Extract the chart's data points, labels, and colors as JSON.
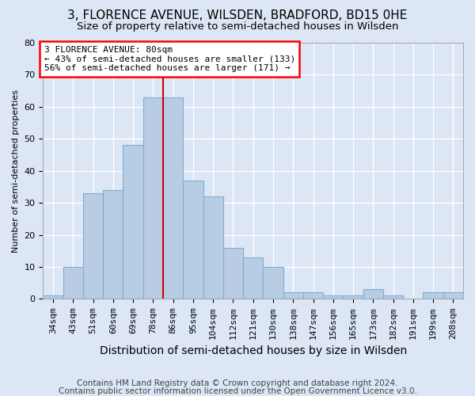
{
  "title": "3, FLORENCE AVENUE, WILSDEN, BRADFORD, BD15 0HE",
  "subtitle": "Size of property relative to semi-detached houses in Wilsden",
  "xlabel": "Distribution of semi-detached houses by size in Wilsden",
  "ylabel": "Number of semi-detached properties",
  "categories": [
    "34sqm",
    "43sqm",
    "51sqm",
    "60sqm",
    "69sqm",
    "78sqm",
    "86sqm",
    "95sqm",
    "104sqm",
    "112sqm",
    "121sqm",
    "130sqm",
    "138sqm",
    "147sqm",
    "156sqm",
    "165sqm",
    "173sqm",
    "182sqm",
    "191sqm",
    "199sqm",
    "208sqm"
  ],
  "values": [
    1,
    10,
    33,
    34,
    48,
    63,
    63,
    37,
    32,
    16,
    13,
    10,
    2,
    2,
    1,
    1,
    3,
    1,
    0,
    2,
    2
  ],
  "bar_color": "#b8cce4",
  "bar_edge_color": "#7bafd4",
  "property_line_x": 5.5,
  "annotation_text": "3 FLORENCE AVENUE: 80sqm\n← 43% of semi-detached houses are smaller (133)\n56% of semi-detached houses are larger (171) →",
  "annotation_box_color": "white",
  "annotation_box_edge": "red",
  "vline_color": "#cc0000",
  "ylim": [
    0,
    80
  ],
  "yticks": [
    0,
    10,
    20,
    30,
    40,
    50,
    60,
    70,
    80
  ],
  "footer1": "Contains HM Land Registry data © Crown copyright and database right 2024.",
  "footer2": "Contains public sector information licensed under the Open Government Licence v3.0.",
  "bg_color": "#dce6f5",
  "plot_bg_color": "#dce6f5",
  "grid_color": "#ffffff",
  "title_fontsize": 11,
  "subtitle_fontsize": 9.5,
  "xlabel_fontsize": 10,
  "ylabel_fontsize": 8,
  "tick_fontsize": 8,
  "footer_fontsize": 7.5,
  "annot_fontsize": 8
}
